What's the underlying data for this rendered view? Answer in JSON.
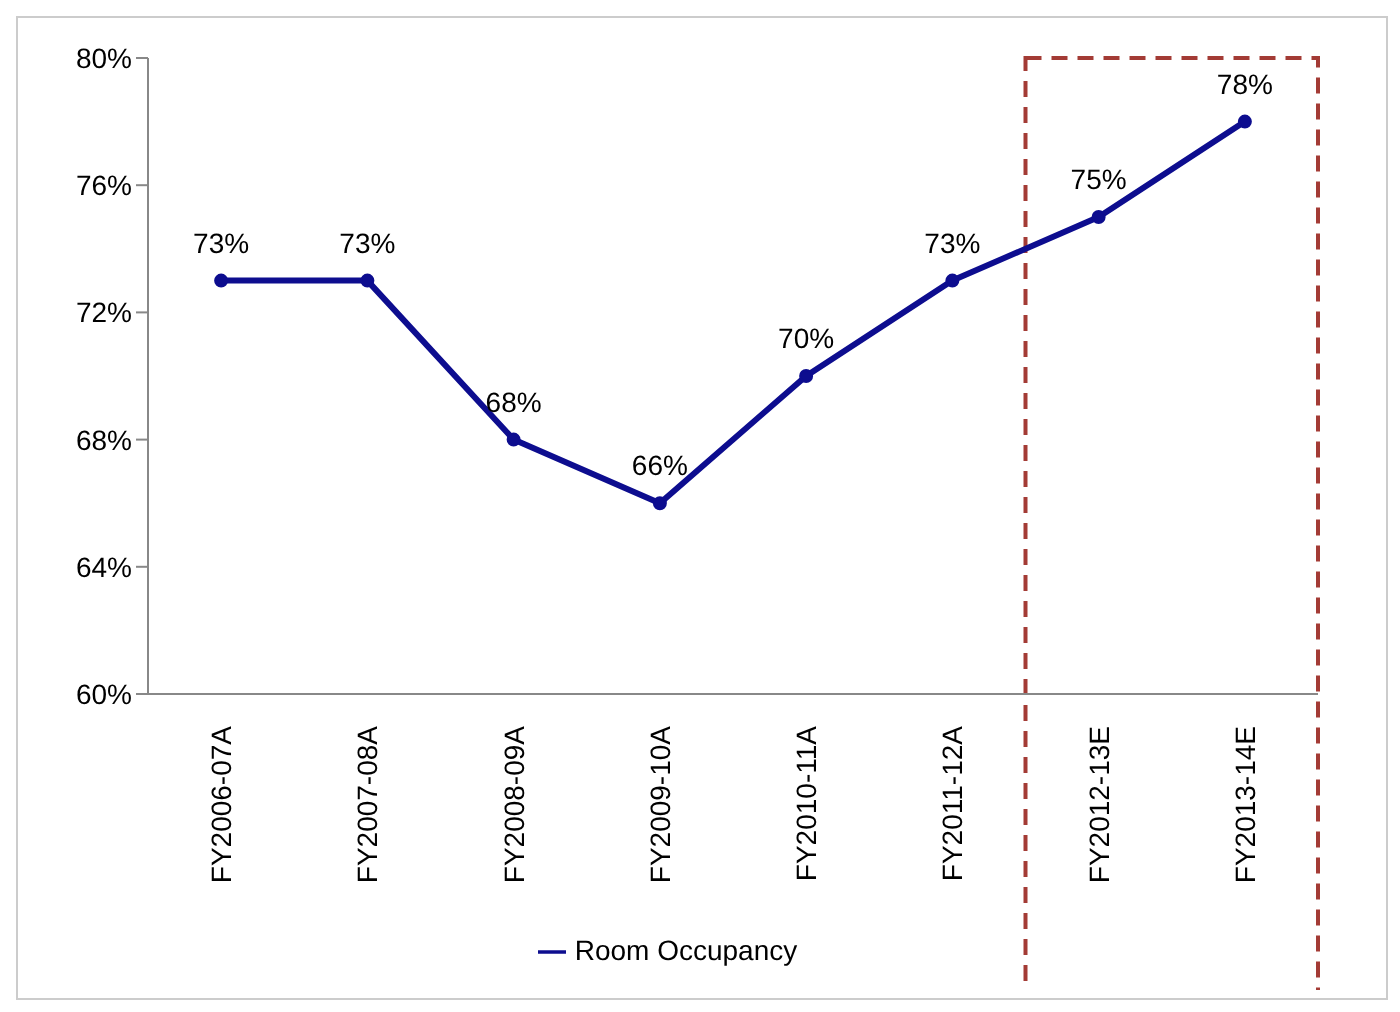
{
  "chart_data": {
    "type": "line",
    "categories": [
      "FY2006-07A",
      "FY2007-08A",
      "FY2008-09A",
      "FY2009-10A",
      "FY2010-11A",
      "FY2011-12A",
      "FY2012-13E",
      "FY2013-14E"
    ],
    "series": [
      {
        "name": "Room Occupancy",
        "color": "#0d0d8f",
        "values": [
          73,
          73,
          68,
          66,
          70,
          73,
          75,
          78
        ],
        "value_labels": [
          "73%",
          "73%",
          "68%",
          "66%",
          "70%",
          "73%",
          "75%",
          "78%"
        ]
      }
    ],
    "ylim": [
      60,
      80
    ],
    "yticks": [
      {
        "value": 60,
        "label": "60%"
      },
      {
        "value": 64,
        "label": "64%"
      },
      {
        "value": 68,
        "label": "68%"
      },
      {
        "value": 72,
        "label": "72%"
      },
      {
        "value": 76,
        "label": "76%"
      },
      {
        "value": 80,
        "label": "80%"
      }
    ],
    "grid": false,
    "legend": "bottom",
    "marker": "circle",
    "line_style": "solid"
  }
}
